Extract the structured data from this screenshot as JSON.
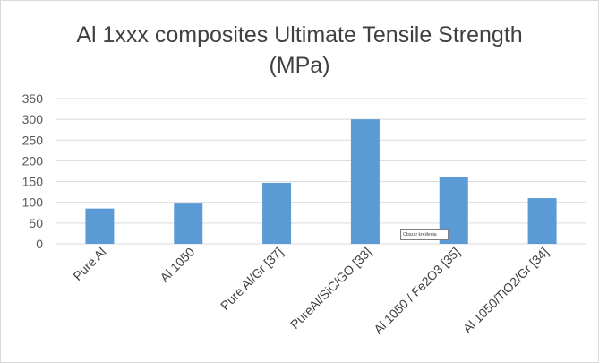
{
  "chart_data": {
    "type": "bar",
    "title_line1": "Al 1xxx composites Ultimate Tensile Strength",
    "title_line2": "(MPa)",
    "categories": [
      "Pure Al",
      "Al 1050",
      "Pure Al/Gr [37]",
      "PureAl/SiC/GO [33]",
      "Al 1050 / Fe2O3 [35]",
      "Al 1050/TiO2/Gr [34]"
    ],
    "values": [
      85,
      97,
      147,
      300,
      160,
      110
    ],
    "ylim": [
      0,
      350
    ],
    "yticks": [
      "0",
      "50",
      "100",
      "150",
      "200",
      "250",
      "300",
      "350"
    ],
    "grid": true,
    "bar_color": "#5b9bd5",
    "tooltip": "Obszar kreślenia"
  }
}
